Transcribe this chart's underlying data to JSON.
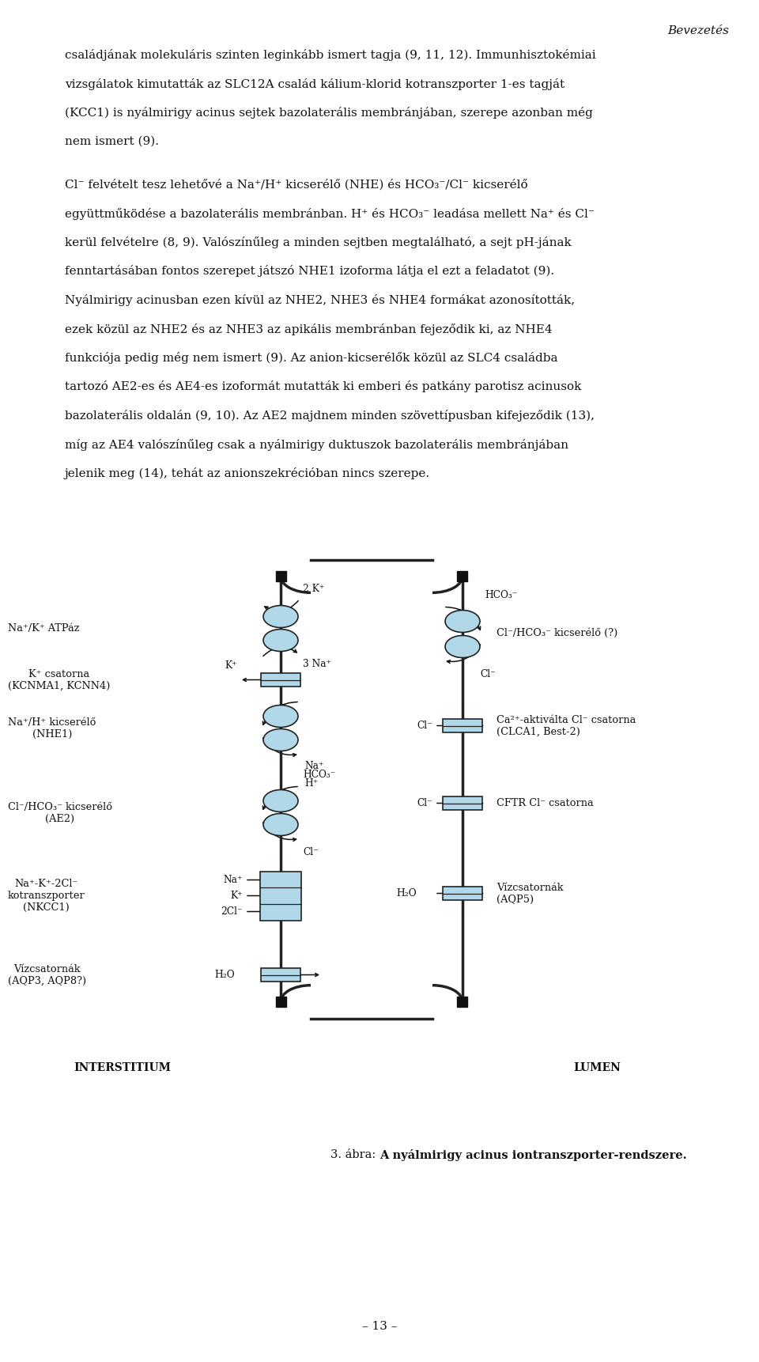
{
  "page_width": 9.6,
  "page_height": 17.22,
  "dpi": 100,
  "bg_color": "#ffffff",
  "header": "Bevezetés",
  "para1_lines": [
    "családjának molekuláris szinten leginkább ismert tagja (9, 11, 12). Immunhisztokémiai",
    "vizsgálatok kimutatták az SLC12A család kálium-klorid kotranszporter 1-es tagját",
    "(KCC1) is nyálmirigy acinus sejtek bazolaterális membránjában, szerepe azonban még",
    "nem ismert (9)."
  ],
  "para2_lines": [
    "Cl⁻ felvételt tesz lehetővé a Na⁺/H⁺ kicserélő (NHE) és HCO₃⁻/Cl⁻ kicserélő",
    "együttműködése a bazolaterális membránban. H⁺ és HCO₃⁻ leadása mellett Na⁺ és Cl⁻",
    "kerül felvételre (8, 9). Valószínűleg a minden sejtben megtalálható, a sejt pH-jának",
    "fenntartásában fontos szerepet játszó NHE1 izoforma látja el ezt a feladatot (9).",
    "Nyálmirigy acinusban ezen kívül az NHE2, NHE3 és NHE4 formákat azonosították,",
    "ezek közül az NHE2 és az NHE3 az apikális membránban fejeződik ki, az NHE4",
    "funkciója pedig még nem ismert (9). Az anion-kicserélők közül az SLC4 családba",
    "tartozó AE2-es és AE4-es izoformát mutatták ki emberi és patkány parotisz acinusok",
    "bazolaterális oldalán (9, 10). Az AE2 majdnem minden szövettípusban kifejeződik (13),",
    "míg az AE4 valószínűleg csak a nyálmirigy duktuszok bazolaterális membránjában",
    "jelenik meg (14), tehát az anionszekrécióban nincs szerepe."
  ],
  "footer": "– 13 –",
  "caption_normal": "3. ábra: ",
  "caption_bold": "A nyálmirigy acinus iontranszporter-rendszere.",
  "cell_color": "#add8e6",
  "cell_stroke": "#222222",
  "transport_color": "#b0d8e8",
  "left_labels": [
    {
      "text": "Na⁺/K⁺ ATPáz",
      "lines": 1
    },
    {
      "text": "K⁺ csatorna\n(KCNMA1, KCNN4)",
      "lines": 2
    },
    {
      "text": "Na⁺/H⁺ kicserélő\n(NHE1)",
      "lines": 2
    },
    {
      "text": "Cl⁻/HCO₃⁻ kicserélő\n(AE2)",
      "lines": 2
    },
    {
      "text": "Na⁺-K⁺-2Cl⁻\nkotranszporter\n(NKCC1)",
      "lines": 3
    },
    {
      "text": "Vízcsatornák\n(AQP3, AQP8?)",
      "lines": 2
    }
  ],
  "right_labels": [
    {
      "text": "Cl⁻/HCO₃⁻ kicserélő (?)",
      "lines": 1
    },
    {
      "text": "Ca²⁺-aktiválta Cl⁻ csatorna\n(CLCA1, Best-2)",
      "lines": 2
    },
    {
      "text": "CFTR Cl⁻ csatorna",
      "lines": 1
    },
    {
      "text": "Vízcsatornák\n(AQP5)",
      "lines": 2
    }
  ]
}
